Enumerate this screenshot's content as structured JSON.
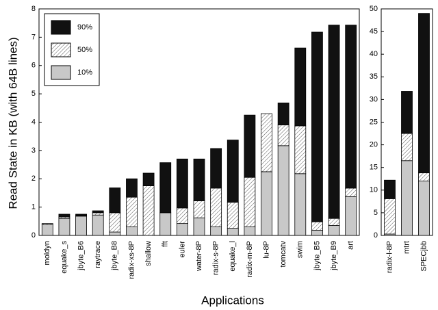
{
  "chart_data": [
    {
      "type": "stacked_bar",
      "ylabel": "Read State in KB (with 64B lines)",
      "xlabel": "Applications",
      "categories": [
        "moldyn",
        "equake_s",
        "jbyte_B6",
        "raytrace",
        "jbyte_B8",
        "radix-xs-8P",
        "shallow",
        "fft",
        "euler",
        "water-8P",
        "radix-s-8P",
        "equake_l",
        "radix-m-8P",
        "lu-8P",
        "tomcatv",
        "swim",
        "jbyte_B5",
        "jbyte_B9",
        "art"
      ],
      "series": [
        {
          "name": "10%",
          "color": "#c8c8c8",
          "pattern": "solid",
          "values": [
            0.38,
            0.6,
            0.68,
            0.72,
            0.12,
            0.3,
            0,
            0.8,
            0.42,
            0.62,
            0.3,
            0.25,
            0.3,
            2.25,
            3.17,
            2.18,
            0.18,
            0.35,
            1.37
          ]
        },
        {
          "name": "50%",
          "color": "#ffffff",
          "pattern": "hatch",
          "values": [
            0.04,
            0.05,
            0.02,
            0.08,
            0.68,
            1.05,
            1.75,
            0,
            0.55,
            0.6,
            1.37,
            0.92,
            1.75,
            2.05,
            0.73,
            1.69,
            0.3,
            0.25,
            0.3
          ]
        },
        {
          "name": "90%",
          "color": "#111111",
          "pattern": "solid",
          "values": [
            0,
            0.1,
            0.05,
            0.07,
            0.88,
            0.65,
            0.45,
            1.77,
            1.73,
            1.48,
            1.4,
            2.2,
            2.2,
            0,
            0.78,
            2.75,
            6.7,
            6.83,
            5.76
          ]
        }
      ],
      "ylim": [
        0,
        8
      ],
      "yticks": [
        0,
        1,
        2,
        3,
        4,
        5,
        6,
        7,
        8
      ],
      "legend": "top-left"
    },
    {
      "type": "stacked_bar",
      "categories": [
        "radix-l-8P",
        "mtrt",
        "SPECjbb"
      ],
      "series": [
        {
          "color": "#c8c8c8",
          "pattern": "solid",
          "values": [
            0.3,
            16.5,
            12
          ]
        },
        {
          "color": "#ffffff",
          "pattern": "hatch",
          "values": [
            7.8,
            6,
            1.8
          ]
        },
        {
          "color": "#111111",
          "pattern": "solid",
          "values": [
            4.1,
            9.3,
            35.2
          ]
        }
      ],
      "ylim": [
        0,
        50
      ],
      "yticks": [
        0,
        5,
        10,
        15,
        20,
        25,
        30,
        35,
        40,
        45,
        50
      ]
    }
  ]
}
